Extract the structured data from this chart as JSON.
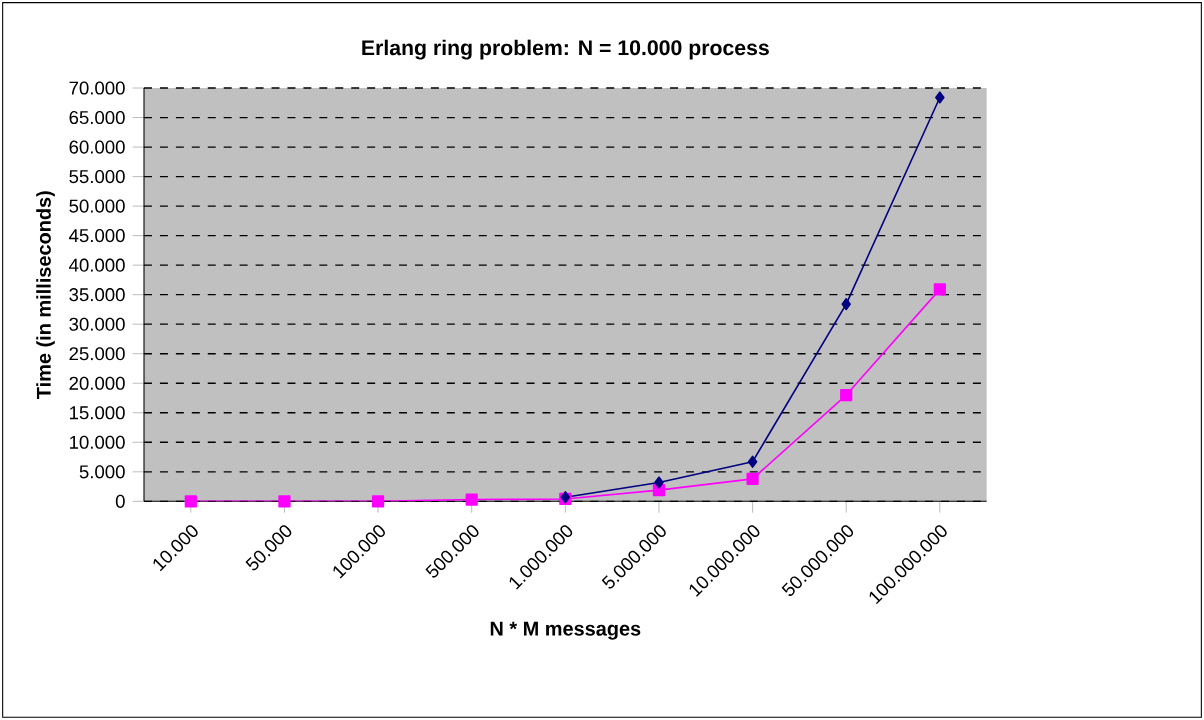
{
  "chart_data": {
    "type": "line",
    "title": "Erlang ring problem: N = 10.000 process",
    "xlabel": "N * M messages",
    "ylabel": "Time (in milliseconds)",
    "categories": [
      "10.000",
      "50.000",
      "100.000",
      "500.000",
      "1.000.000",
      "5.000.000",
      "10.000.000",
      "50.000.000",
      "100.000.000"
    ],
    "series": [
      {
        "color": "#000080",
        "marker": "diamond",
        "values": [
          null,
          null,
          null,
          null,
          700,
          3200,
          6700,
          33400,
          68400
        ]
      },
      {
        "color": "#ff00ff",
        "marker": "square",
        "values": [
          0,
          0,
          0,
          300,
          400,
          1900,
          3800,
          18000,
          35900
        ]
      }
    ],
    "ylim": [
      0,
      70000
    ],
    "yticks": [
      {
        "value": 0,
        "label": "0"
      },
      {
        "value": 5000,
        "label": "5.000"
      },
      {
        "value": 10000,
        "label": "10.000"
      },
      {
        "value": 15000,
        "label": "15.000"
      },
      {
        "value": 20000,
        "label": "20.000"
      },
      {
        "value": 25000,
        "label": "25.000"
      },
      {
        "value": 30000,
        "label": "30.000"
      },
      {
        "value": 35000,
        "label": "35.000"
      },
      {
        "value": 40000,
        "label": "40.000"
      },
      {
        "value": 45000,
        "label": "45.000"
      },
      {
        "value": 50000,
        "label": "50.000"
      },
      {
        "value": 55000,
        "label": "55.000"
      },
      {
        "value": 60000,
        "label": "60.000"
      },
      {
        "value": 65000,
        "label": "65.000"
      },
      {
        "value": 70000,
        "label": "70.000"
      }
    ],
    "grid": "y"
  }
}
